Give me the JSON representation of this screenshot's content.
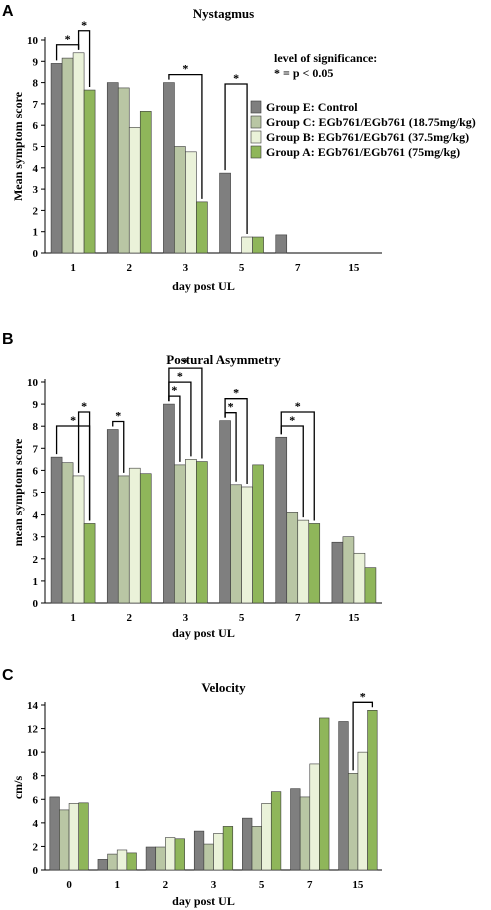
{
  "colors": {
    "control": "#7f7f7f",
    "c": "#b9c6a4",
    "b": "#eaf2d9",
    "a": "#8fb65a",
    "bar_stroke": "#3a3a3a",
    "axis": "#000000"
  },
  "legend": {
    "significance_title": "level of significance:",
    "significance_rule": "* = p < 0.05",
    "entries": [
      "Group E: Control",
      "Group C: EGb761/EGb761 (18.75mg/kg)",
      "Group B: EGb761/EGb761 (37.5mg/kg)",
      "Group A: EGb761/EGb761 (75mg/kg)"
    ]
  },
  "chart_data": [
    {
      "type": "bar",
      "panel": "A",
      "title": "Nystagmus",
      "xlabel": "day post UL",
      "ylabel": "Mean symptom score",
      "categories": [
        "1",
        "2",
        "3",
        "5",
        "7",
        "15"
      ],
      "ylim": [
        0,
        10
      ],
      "yticks": [
        0,
        1,
        2,
        3,
        4,
        5,
        6,
        7,
        8,
        9,
        10
      ],
      "series": [
        {
          "name": "Group E: Control",
          "values": [
            8.9,
            8.0,
            8.0,
            3.75,
            0.85,
            0
          ]
        },
        {
          "name": "Group C: EGb761/EGb761 (18.75mg/kg)",
          "values": [
            9.15,
            7.75,
            5.0,
            0,
            0,
            0
          ]
        },
        {
          "name": "Group B: EGb761/EGb761 (37.5mg/kg)",
          "values": [
            9.4,
            5.9,
            4.75,
            0.75,
            0,
            0
          ]
        },
        {
          "name": "Group A: EGb761/EGb761 (75mg/kg)",
          "values": [
            7.65,
            6.65,
            2.4,
            0.75,
            0,
            0
          ]
        }
      ],
      "significance": [
        {
          "category": "1",
          "from": 0,
          "to": 2,
          "label": "*"
        },
        {
          "category": "1",
          "from": 2,
          "to": 3,
          "label": "*"
        },
        {
          "category": "3",
          "from": 0,
          "to": 3,
          "label": "*"
        },
        {
          "category": "5",
          "from": 0,
          "to": 2,
          "label": "*"
        }
      ]
    },
    {
      "type": "bar",
      "panel": "B",
      "title": "Postural Asymmetry",
      "xlabel": "day post UL",
      "ylabel": "mean symptom score",
      "categories": [
        "1",
        "2",
        "3",
        "5",
        "7",
        "15"
      ],
      "ylim": [
        0,
        10
      ],
      "yticks": [
        0,
        1,
        2,
        3,
        4,
        5,
        6,
        7,
        8,
        9,
        10
      ],
      "series": [
        {
          "name": "Group E: Control",
          "values": [
            6.6,
            7.85,
            9.0,
            8.25,
            7.5,
            2.75
          ]
        },
        {
          "name": "Group C: EGb761/EGb761 (18.75mg/kg)",
          "values": [
            6.35,
            5.75,
            6.25,
            5.35,
            4.1,
            3.0
          ]
        },
        {
          "name": "Group B: EGb761/EGb761 (37.5mg/kg)",
          "values": [
            5.75,
            6.1,
            6.5,
            5.25,
            3.75,
            2.25
          ]
        },
        {
          "name": "Group A: EGb761/EGb761 (75mg/kg)",
          "values": [
            3.6,
            5.85,
            6.4,
            6.25,
            3.6,
            1.6
          ]
        }
      ],
      "significance": [
        {
          "category": "1",
          "from": 0,
          "to": 3,
          "label": "*"
        },
        {
          "category": "1",
          "from": 2,
          "to": 3,
          "label": "*"
        },
        {
          "category": "2",
          "from": 0,
          "to": 1,
          "label": "*"
        },
        {
          "category": "3",
          "from": 0,
          "to": 1,
          "label": "*"
        },
        {
          "category": "3",
          "from": 0,
          "to": 2,
          "label": "*"
        },
        {
          "category": "3",
          "from": 0,
          "to": 3,
          "label": "*"
        },
        {
          "category": "5",
          "from": 0,
          "to": 1,
          "label": "*"
        },
        {
          "category": "5",
          "from": 0,
          "to": 2,
          "label": "*"
        },
        {
          "category": "7",
          "from": 0,
          "to": 2,
          "label": "*"
        },
        {
          "category": "7",
          "from": 0,
          "to": 3,
          "label": "*"
        }
      ]
    },
    {
      "type": "bar",
      "panel": "C",
      "title": "Velocity",
      "xlabel": "day post UL",
      "ylabel": "cm/s",
      "categories": [
        "0",
        "1",
        "2",
        "3",
        "5",
        "7",
        "15"
      ],
      "ylim": [
        0,
        14
      ],
      "yticks": [
        0,
        2,
        4,
        6,
        8,
        10,
        12,
        14
      ],
      "series": [
        {
          "name": "Group E: Control",
          "values": [
            6.2,
            0.9,
            1.95,
            3.3,
            4.4,
            6.9,
            12.6
          ]
        },
        {
          "name": "Group C: EGb761/EGb761 (18.75mg/kg)",
          "values": [
            5.1,
            1.35,
            1.95,
            2.2,
            3.7,
            6.2,
            8.2
          ]
        },
        {
          "name": "Group B: EGb761/EGb761 (37.5mg/kg)",
          "values": [
            5.65,
            1.7,
            2.75,
            3.1,
            5.65,
            9.0,
            10.0
          ]
        },
        {
          "name": "Group A: EGb761/EGb761 (75mg/kg)",
          "values": [
            5.7,
            1.45,
            2.65,
            3.7,
            6.65,
            12.9,
            13.55
          ]
        }
      ],
      "significance": [
        {
          "category": "15",
          "from": 1,
          "to": 3,
          "label": "*"
        }
      ]
    }
  ]
}
